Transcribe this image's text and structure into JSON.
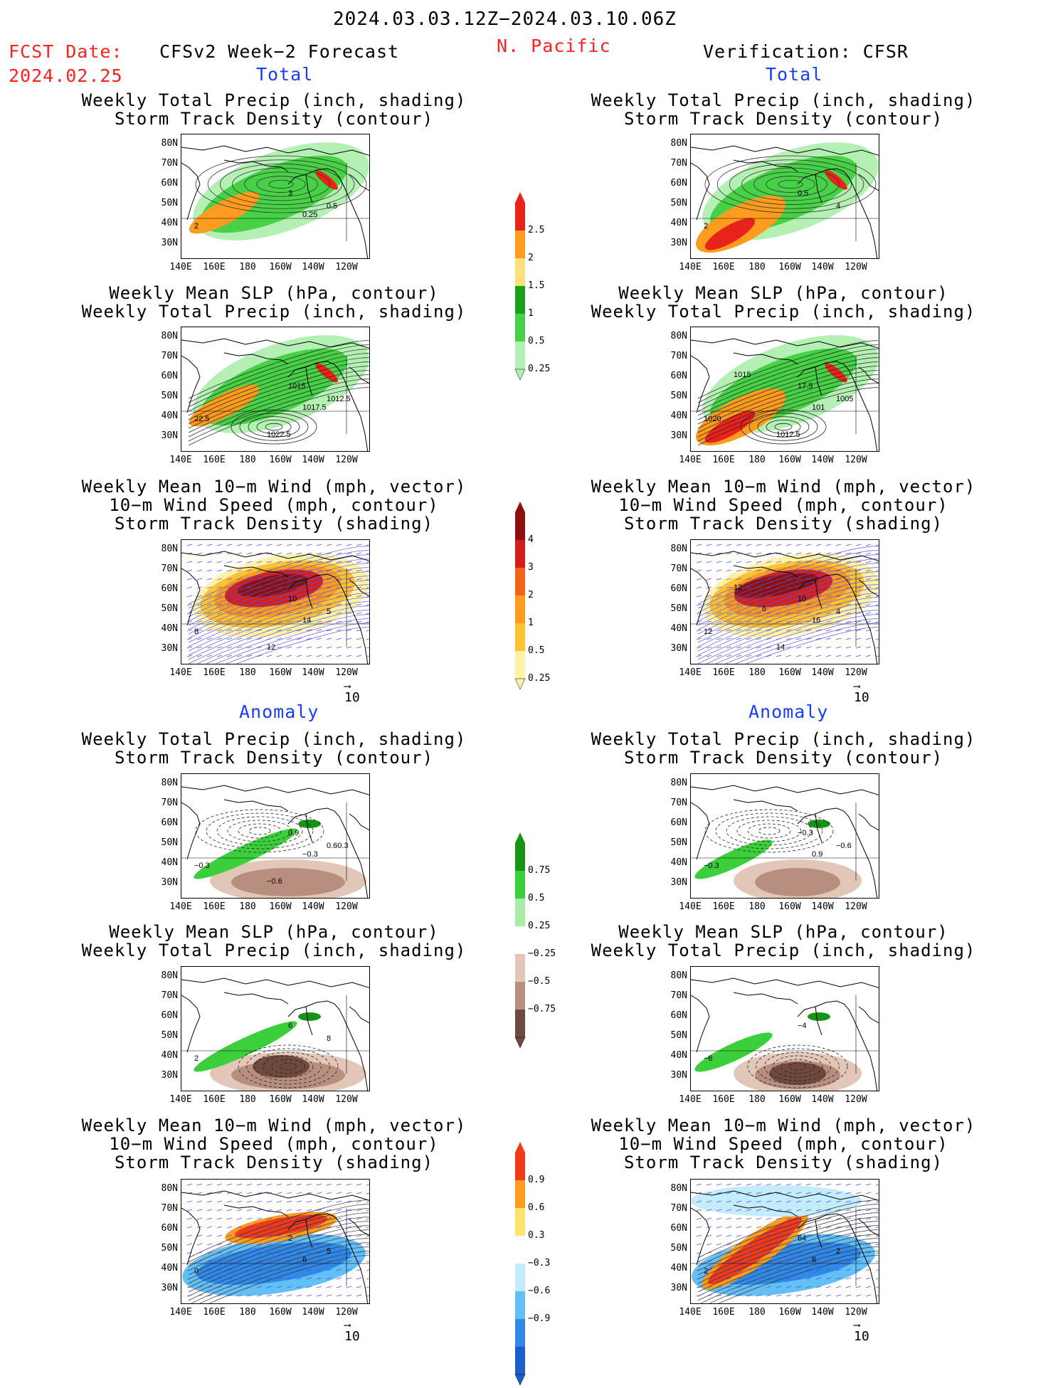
{
  "header": {
    "period": "2024.03.03.12Z−2024.03.10.06Z",
    "fcst_label": "FCST Date:",
    "fcst_date": "2024.02.25",
    "model_title": "CFSv2 Week−2 Forecast",
    "region": "N. Pacific",
    "verif_title": "Verification: CFSR",
    "total_left": "Total",
    "total_right": "Total",
    "anom_left": "Anomaly",
    "anom_right": "Anomaly"
  },
  "titles": {
    "precip_storm": "Weekly Total Precip (inch, shading)\nStorm Track Density (contour)",
    "slp_precip": "Weekly Mean SLP (hPa, contour)\nWeekly Total Precip (inch, shading)",
    "wind_storm": "Weekly Mean 10−m Wind (mph, vector)\n10−m Wind Speed (mph, contour)\nStorm Track Density (shading)"
  },
  "axes": {
    "y_ticks": [
      "80N",
      "70N",
      "60N",
      "50N",
      "40N",
      "30N"
    ],
    "x_ticks": [
      "140E",
      "160E",
      "180",
      "160W",
      "140W",
      "120W"
    ]
  },
  "vector_ref": "10",
  "colorbars": {
    "precip_total": {
      "labels": [
        "2.5",
        "2",
        "1.5",
        "1",
        "0.5",
        "0.25"
      ],
      "colors": [
        "#e8231c",
        "#ff9b1f",
        "#ffe07a",
        "#19a119",
        "#47d147",
        "#b4f0b4"
      ]
    },
    "storm_total": {
      "labels": [
        "4",
        "3",
        "2",
        "1",
        "0.5",
        "0.25"
      ],
      "colors": [
        "#8b1010",
        "#d41e1e",
        "#f2641a",
        "#ff9c1f",
        "#ffc233",
        "#fff2a8"
      ]
    },
    "precip_anom": {
      "labels": [
        "0.75",
        "0.5",
        "0.25",
        "−0.25",
        "−0.5",
        "−0.75"
      ],
      "colors": [
        "#159415",
        "#3ccf3c",
        "#a6eca6",
        "#ffffff",
        "#e2c6b8",
        "#b88e7e",
        "#6e4a3e"
      ]
    },
    "storm_anom": {
      "labels": [
        "0.9",
        "0.6",
        "0.3",
        "−0.3",
        "−0.6",
        "−0.9"
      ],
      "colors": [
        "#f03a1a",
        "#ff9c1f",
        "#ffe36b",
        "#ffffff",
        "#c3ecff",
        "#62c0f4",
        "#2f89e6",
        "#1a5fcc"
      ]
    }
  },
  "panel_labels": {
    "p1l": [
      "2",
      "3",
      "0.5",
      "0.25"
    ],
    "p1r": [
      "2",
      "0.5",
      "4"
    ],
    "p2l": [
      "22.5",
      "1015",
      "1012.5",
      "1017.5",
      "1022.5"
    ],
    "p2r": [
      "1020",
      "17.5",
      "1005",
      "101",
      "1012.5",
      "1015"
    ],
    "p3l": [
      "8",
      "10",
      "5",
      "14",
      "12"
    ],
    "p3r": [
      "12",
      "10",
      "4",
      "16",
      "14",
      "12",
      "6"
    ],
    "p4l": [
      "−0.3",
      "0.9",
      "0.60.3",
      "−0.3",
      "−0.6"
    ],
    "p4r": [
      "−0.3",
      "−0.3",
      "−0.6",
      "0.9"
    ],
    "p5l": [
      "2",
      "6",
      "8"
    ],
    "p5r": [
      "−6",
      "−4"
    ],
    "p6l": [
      "0",
      "2",
      "5",
      "6"
    ],
    "p6r": [
      "2",
      "64",
      "2",
      "6"
    ]
  }
}
